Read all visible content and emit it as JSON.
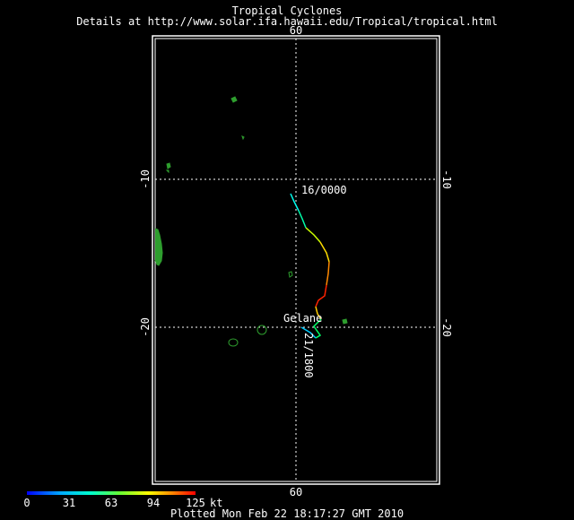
{
  "header": {
    "title": "Tropical Cyclones",
    "subtitle": "Details at http://www.solar.ifa.hawaii.edu/Tropical/tropical.html"
  },
  "map": {
    "top_lon_label": "60",
    "bottom_lon_label": "60",
    "left_lat_labels": [
      "-10",
      "-20"
    ],
    "right_lat_labels": [
      "-10",
      "-20"
    ],
    "colors": {
      "frame": "#ffffff",
      "land": "#2e9e2e",
      "grid": "#ffffff",
      "background": "#000000"
    }
  },
  "storm": {
    "name": "Gelane",
    "start_label": "16/0000",
    "end_label": "21/1800"
  },
  "legend": {
    "ticks": [
      "0",
      "31",
      "63",
      "94",
      "125"
    ],
    "unit": "kt",
    "gradient": [
      "#0000ff",
      "#00aaff",
      "#00ffcc",
      "#66ff33",
      "#ffff00",
      "#ff8800",
      "#ff0000"
    ]
  },
  "footer": {
    "text": "Plotted Mon Feb 22 18:17:27 GMT 2010"
  }
}
